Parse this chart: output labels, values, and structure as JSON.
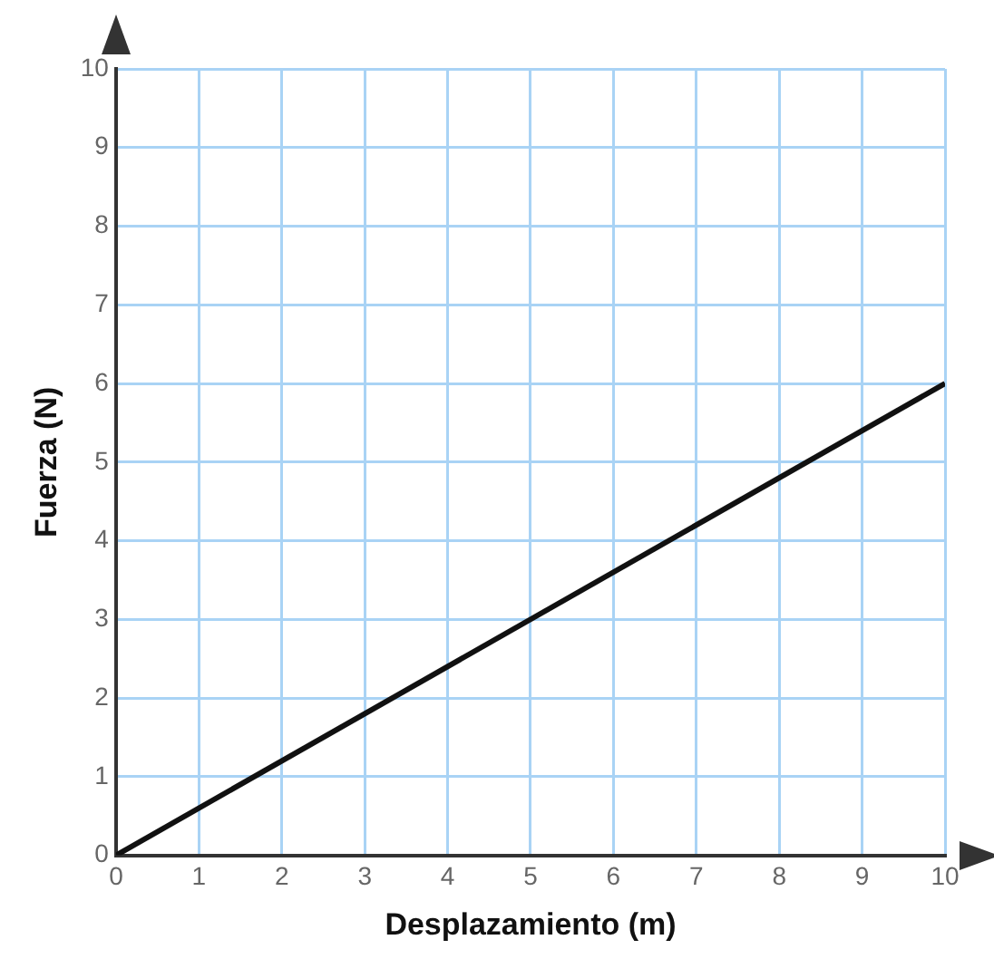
{
  "chart_data": {
    "type": "line",
    "xlabel": "Desplazamiento (m)",
    "ylabel": "Fuerza (N)",
    "x": [
      0,
      10
    ],
    "series": [
      {
        "color": "#111111",
        "values": [
          0,
          6
        ]
      }
    ],
    "xlim": [
      0,
      10
    ],
    "ylim": [
      0,
      10
    ],
    "xticks": [
      0,
      1,
      2,
      3,
      4,
      5,
      6,
      7,
      8,
      9,
      10
    ],
    "yticks": [
      0,
      1,
      2,
      3,
      4,
      5,
      6,
      7,
      8,
      9,
      10
    ],
    "grid": true,
    "legend": false,
    "marker": "none",
    "line_style": "solid"
  }
}
